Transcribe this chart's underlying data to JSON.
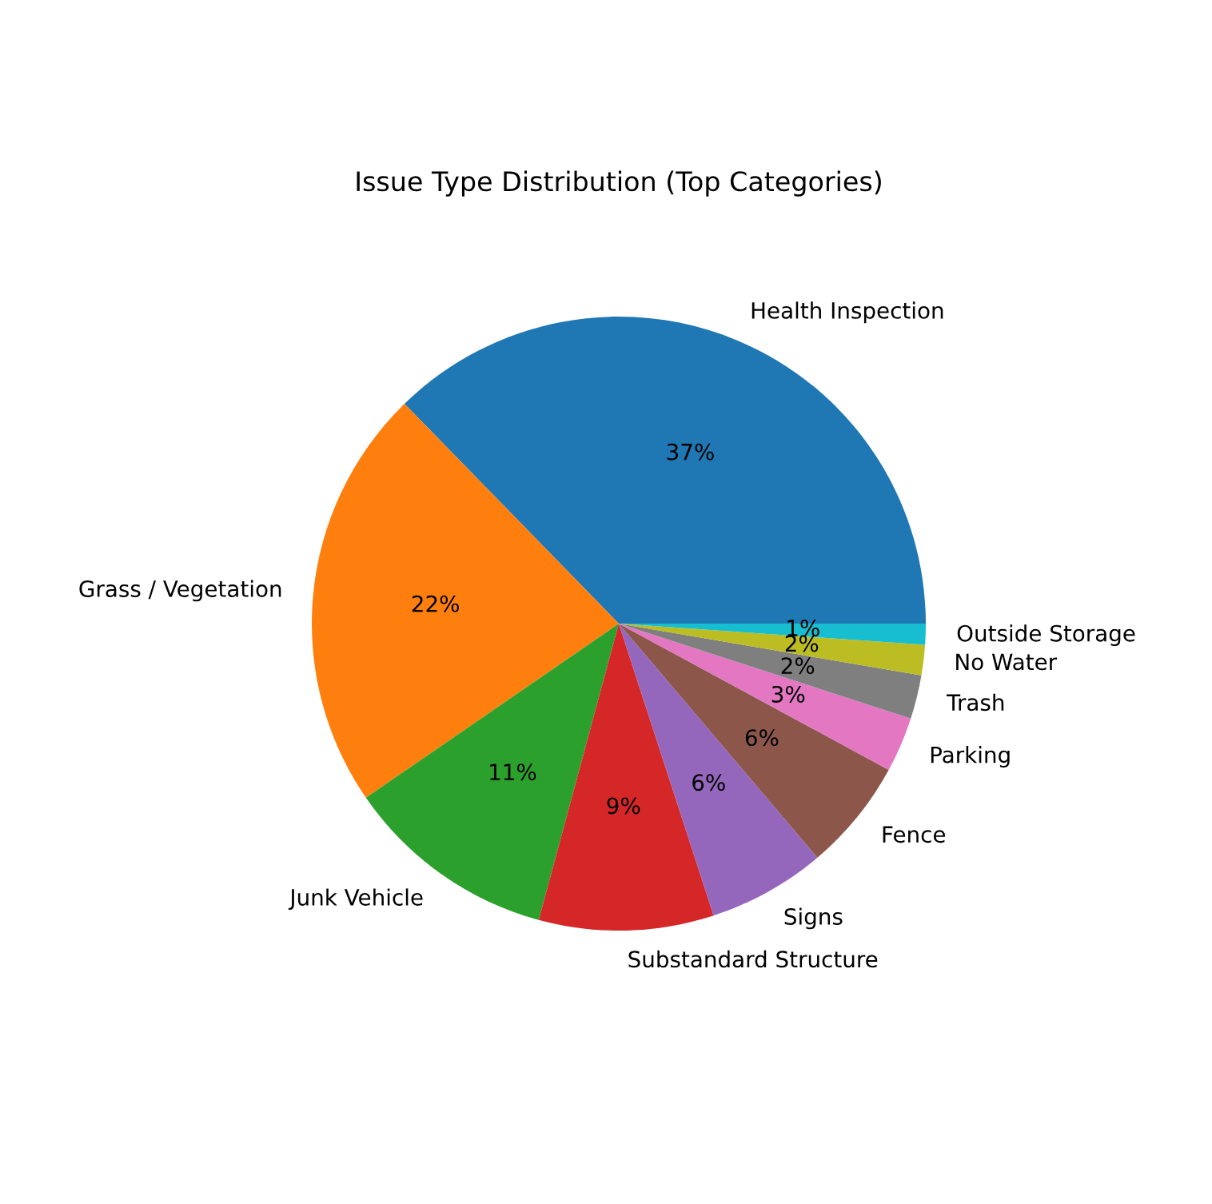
{
  "chart_data": {
    "type": "pie",
    "title": "Issue Type Distribution (Top Categories)",
    "categories": [
      "Health Inspection",
      "Grass / Vegetation",
      "Junk Vehicle",
      "Substandard Structure",
      "Signs",
      "Fence",
      "Parking",
      "Trash",
      "No Water",
      "Outside Storage"
    ],
    "values": [
      37.3,
      22.3,
      11.2,
      9.2,
      6.2,
      5.9,
      2.9,
      2.3,
      1.6,
      1.1
    ],
    "value_labels": [
      "37%",
      "22%",
      "11%",
      "9%",
      "6%",
      "6%",
      "3%",
      "2%",
      "2%",
      "1%"
    ],
    "colors": [
      "#1f77b4",
      "#ff7f0e",
      "#2ca02c",
      "#d62728",
      "#9467bd",
      "#8c564b",
      "#e377c2",
      "#7f7f7f",
      "#bcbd22",
      "#17becf"
    ],
    "legend": false
  }
}
